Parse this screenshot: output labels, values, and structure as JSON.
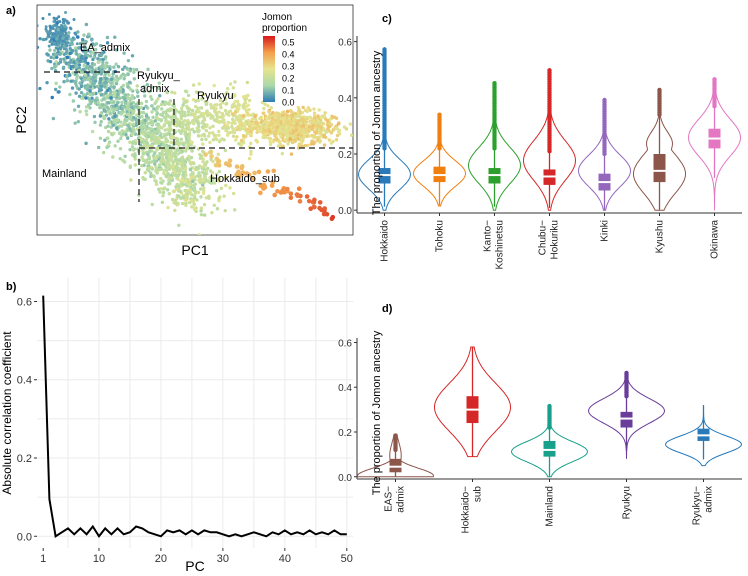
{
  "panels": {
    "a": "a)",
    "b": "b)",
    "c": "c)",
    "d": "d)"
  },
  "colors": {
    "grid": "#ebebeb",
    "axis": "#333333",
    "dashed": "#1a1a1a"
  },
  "chart_data": [
    {
      "id": "a",
      "type": "scatter",
      "title": "",
      "xlabel": "PC1",
      "ylabel": "PC2",
      "legend": {
        "title_line1": "Jomon",
        "title_line2": "proportion",
        "placement": "top-right",
        "ticks": [
          "0.5",
          "0.4",
          "0.3",
          "0.2",
          "0.1",
          "0.0"
        ],
        "tick_values": [
          0.5,
          0.4,
          0.3,
          0.2,
          0.1,
          0.0
        ],
        "range": [
          0.0,
          0.55
        ]
      },
      "clusters": [
        {
          "name": "EA_admix",
          "label": "EA_admix",
          "center": [
            0.08,
            0.86
          ],
          "jomon": 0.03
        },
        {
          "name": "Mainland",
          "label": "Mainland",
          "center": [
            0.35,
            0.5
          ],
          "jomon": 0.15
        },
        {
          "name": "Ryukyu_admix",
          "label_line1": "Ryukyu_",
          "label_line2": "admix",
          "center": [
            0.57,
            0.48
          ],
          "jomon": 0.22
        },
        {
          "name": "Ryukyu",
          "label": "Ryukyu",
          "center": [
            0.8,
            0.47
          ],
          "jomon": 0.3
        },
        {
          "name": "Hokkaido_sub",
          "label": "Hokkaido_sub",
          "center": [
            0.85,
            0.18
          ],
          "jomon": 0.42
        }
      ]
    },
    {
      "id": "b",
      "type": "line",
      "xlabel": "PC",
      "ylabel": "Absolute correlation coefficient",
      "xlim": [
        0,
        51
      ],
      "ylim": [
        -0.03,
        0.66
      ],
      "xticks": [
        "1",
        "10",
        "20",
        "30",
        "40",
        "50"
      ],
      "xtick_values": [
        1,
        10,
        20,
        30,
        40,
        50
      ],
      "yticks": [
        "0.0",
        "0.2",
        "0.4",
        "0.6"
      ],
      "ytick_values": [
        0.0,
        0.2,
        0.4,
        0.6
      ],
      "x": [
        1,
        2,
        3,
        4,
        5,
        6,
        7,
        8,
        9,
        10,
        11,
        12,
        13,
        14,
        15,
        16,
        17,
        18,
        19,
        20,
        21,
        22,
        23,
        24,
        25,
        26,
        27,
        28,
        29,
        30,
        31,
        32,
        33,
        34,
        35,
        36,
        37,
        38,
        39,
        40,
        41,
        42,
        43,
        44,
        45,
        46,
        47,
        48,
        49,
        50
      ],
      "y": [
        0.615,
        0.095,
        0.0,
        0.01,
        0.02,
        0.005,
        0.02,
        0.005,
        0.025,
        0.0,
        0.02,
        0.005,
        0.02,
        0.005,
        0.01,
        0.025,
        0.02,
        0.01,
        0.005,
        0.0,
        0.015,
        0.01,
        0.015,
        0.005,
        0.015,
        0.005,
        0.015,
        0.01,
        0.01,
        0.005,
        0.0,
        0.005,
        0.0,
        0.005,
        0.01,
        0.005,
        0.0,
        0.01,
        0.005,
        0.015,
        0.005,
        0.01,
        0.005,
        0.015,
        0.005,
        0.01,
        0.005,
        0.015,
        0.005,
        0.005
      ]
    },
    {
      "id": "c",
      "type": "violin",
      "ylabel": "The proportion of Jomon ancestry",
      "ylim": [
        -0.01,
        0.62
      ],
      "yticks": [
        "0.0",
        "0.2",
        "0.4",
        "0.6"
      ],
      "ytick_values": [
        0.0,
        0.2,
        0.4,
        0.6
      ],
      "groups": [
        {
          "name": "Hokkaido",
          "line1": "Hokkaido",
          "line2": "",
          "color": "#2a7ab9",
          "median": 0.125,
          "q1": 0.095,
          "q3": 0.15,
          "min": 0.0,
          "max": 0.58,
          "outlier_from": 0.22,
          "shape": "narrow"
        },
        {
          "name": "Tohoku",
          "line1": "Tohoku",
          "line2": "",
          "color": "#f07f10",
          "median": 0.125,
          "q1": 0.1,
          "q3": 0.155,
          "min": 0.015,
          "max": 0.345,
          "outlier_from": 0.22,
          "shape": "normal"
        },
        {
          "name": "Kanto-Koshinetsu",
          "line1": "Kanto−",
          "line2": "Koshinetsu",
          "color": "#2ca02c",
          "median": 0.125,
          "q1": 0.095,
          "q3": 0.15,
          "min": 0.0,
          "max": 0.455,
          "outlier_from": 0.22,
          "shape": "normal"
        },
        {
          "name": "Chubu-Hokuriku",
          "line1": "Chubu−",
          "line2": "Hokuriku",
          "color": "#d62728",
          "median": 0.12,
          "q1": 0.09,
          "q3": 0.145,
          "min": 0.0,
          "max": 0.505,
          "outlier_from": 0.21,
          "shape": "normal"
        },
        {
          "name": "Kinki",
          "line1": "Kinki",
          "line2": "",
          "color": "#9467bd",
          "median": 0.1,
          "q1": 0.07,
          "q3": 0.13,
          "min": 0.0,
          "max": 0.4,
          "outlier_from": 0.2,
          "shape": "normal"
        },
        {
          "name": "Kyushu",
          "line1": "Kyushu",
          "line2": "",
          "color": "#8c564b",
          "median": 0.14,
          "q1": 0.1,
          "q3": 0.2,
          "min": 0.0,
          "max": 0.43,
          "outlier_from": 0.34,
          "shape": "wide"
        },
        {
          "name": "Okinawa",
          "line1": "Okinawa",
          "line2": "",
          "color": "#e377c2",
          "median": 0.255,
          "q1": 0.22,
          "q3": 0.29,
          "min": 0.0,
          "max": 0.47,
          "outlier_from": 0.37,
          "shape": "high"
        }
      ]
    },
    {
      "id": "d",
      "type": "violin",
      "ylabel": "The proportion of Jomon ancestry",
      "ylim": [
        -0.01,
        0.62
      ],
      "yticks": [
        "0.0",
        "0.2",
        "0.4",
        "0.6"
      ],
      "ytick_values": [
        0.0,
        0.2,
        0.4,
        0.6
      ],
      "groups": [
        {
          "name": "EAS-admix",
          "line1": "EAS−",
          "line2": "admix",
          "color": "#8c564b",
          "median": 0.045,
          "q1": 0.02,
          "q3": 0.08,
          "min": 0.0,
          "max": 0.19,
          "outlier_from": 0.12,
          "shape": "flat"
        },
        {
          "name": "Hokkaido-sub",
          "line1": "Hokkaido−",
          "line2": "sub",
          "color": "#d62728",
          "median": 0.3,
          "q1": 0.24,
          "q3": 0.36,
          "min": 0.09,
          "max": 0.58,
          "outlier_from": 0.9,
          "shape": "tall"
        },
        {
          "name": "Mainland",
          "line1": "Mainland",
          "line2": "",
          "color": "#17a08a",
          "median": 0.12,
          "q1": 0.09,
          "q3": 0.16,
          "min": 0.0,
          "max": 0.32,
          "outlier_from": 0.22,
          "shape": "normal"
        },
        {
          "name": "Ryukyu",
          "line1": "Ryukyu",
          "line2": "",
          "color": "#6a3d9a",
          "median": 0.26,
          "q1": 0.22,
          "q3": 0.29,
          "min": 0.08,
          "max": 0.47,
          "outlier_from": 0.36,
          "shape": "high"
        },
        {
          "name": "Ryukyu-admix",
          "line1": "Ryukyu−",
          "line2": "admix",
          "color": "#2a7ab9",
          "median": 0.185,
          "q1": 0.16,
          "q3": 0.215,
          "min": 0.05,
          "max": 0.32,
          "outlier_from": 0.9,
          "shape": "normal"
        }
      ]
    }
  ]
}
